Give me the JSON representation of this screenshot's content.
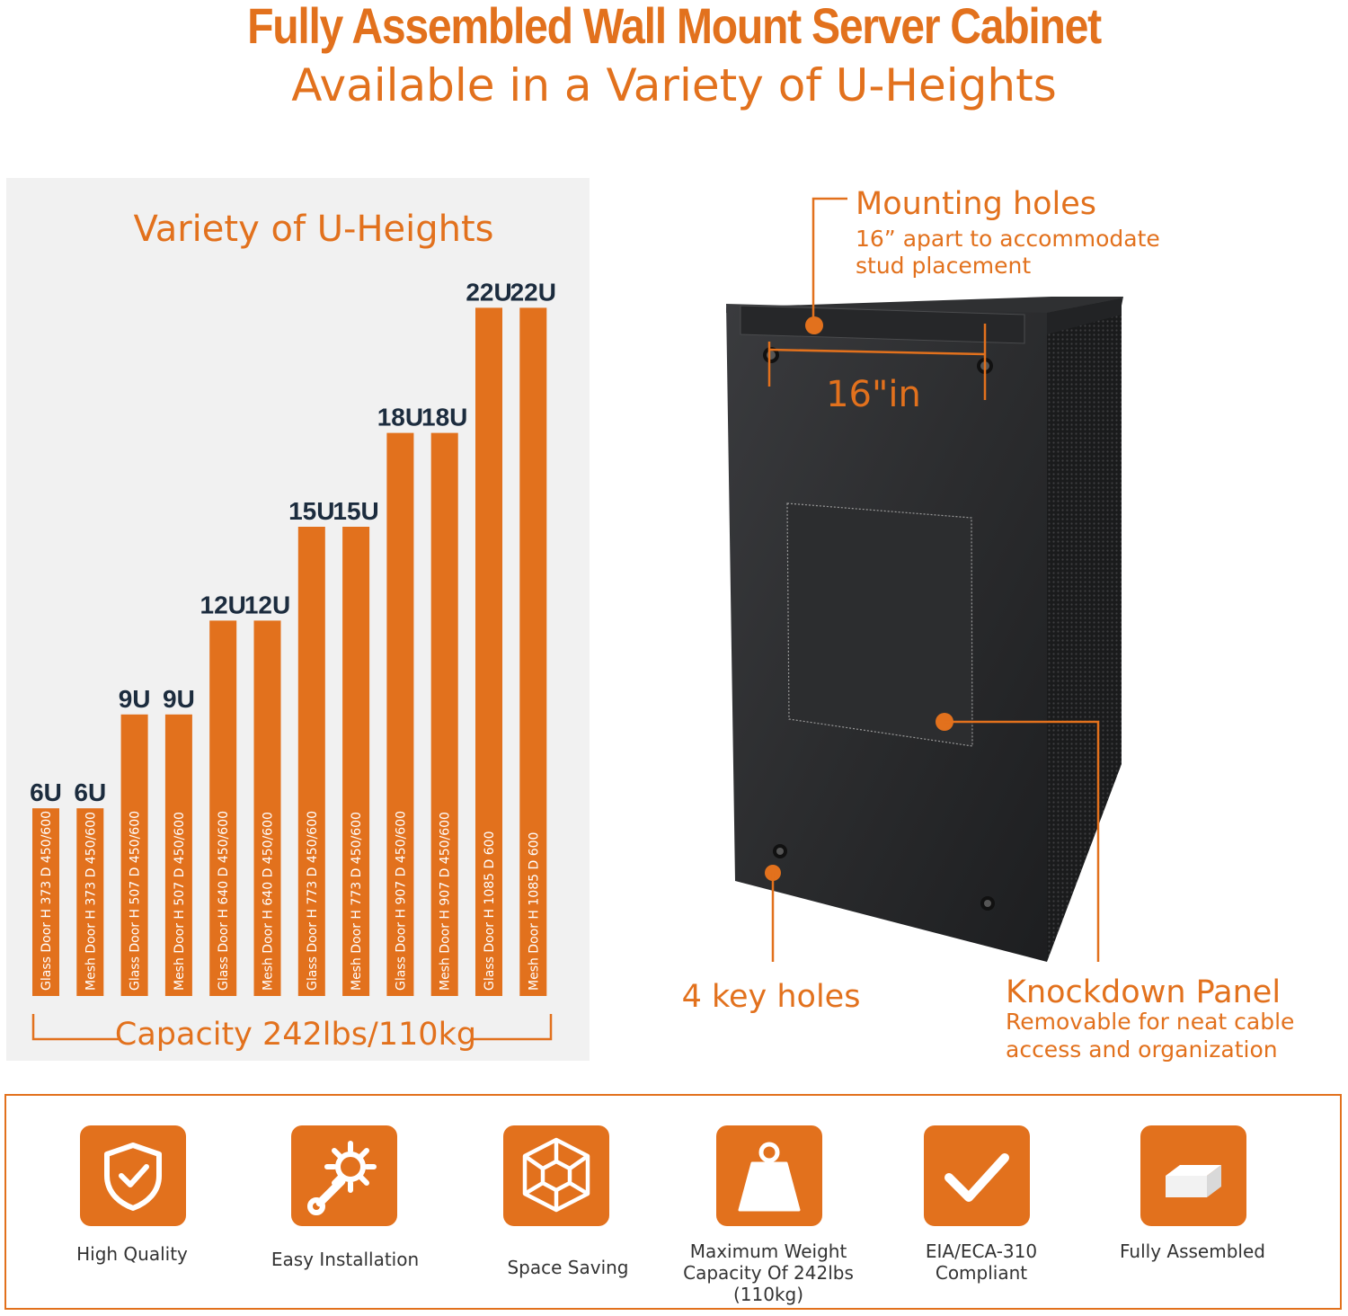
{
  "header": {
    "title": "Fully Assembled Wall Mount Server Cabinet",
    "subtitle": "Available in a Variety of U-Heights"
  },
  "chart_data": {
    "type": "bar",
    "title": "Variety of U-Heights",
    "categories": [
      "Glass Door  H 373  D 450/600",
      "Mesh Door  H 373  D 450/600",
      "Glass Door  H 507  D 450/600",
      "Mesh Door  H 507  D 450/600",
      "Glass Door  H 640  D 450/600",
      "Mesh Door  H 640  D 450/600",
      "Glass Door  H 773  D 450/600",
      "Mesh Door  H 773  D 450/600",
      "Glass Door  H 907  D 450/600",
      "Mesh Door  H 907  D 450/600",
      "Glass Door  H 1085  D 600",
      "Mesh Door  H 1085  D 600"
    ],
    "values": [
      6,
      6,
      9,
      9,
      12,
      12,
      15,
      15,
      18,
      18,
      22,
      22
    ],
    "value_labels": [
      "6U",
      "6U",
      "9U",
      "9U",
      "12U",
      "12U",
      "15U",
      "15U",
      "18U",
      "18U",
      "22U",
      "22U"
    ],
    "xlabel": "Capacity 242lbs/110kg",
    "ylabel": "",
    "ylim": [
      0,
      22
    ],
    "grid": false,
    "legend": "none",
    "bar_color": "#e2711d",
    "label_color": "#1c2c3e"
  },
  "cabinet": {
    "mounting_holes_title": "Mounting holes",
    "mounting_holes_sub1": "16” apart to accommodate",
    "mounting_holes_sub2": "stud placement",
    "spacing_label": "16\"in",
    "key_holes": "4 key holes",
    "knockdown_title": "Knockdown Panel",
    "knockdown_sub1": "Removable for neat cable",
    "knockdown_sub2": "access and organization",
    "body_color": "#2a2b2d",
    "accent": "#e2711d"
  },
  "features": [
    {
      "icon": "shield-check-icon",
      "line1": "High Quality",
      "line2": ""
    },
    {
      "icon": "wrench-gear-icon",
      "line1": "Easy Installation",
      "line2": ""
    },
    {
      "icon": "cube-icon",
      "line1": "Space Saving",
      "line2": ""
    },
    {
      "icon": "weight-icon",
      "line1": "Maximum Weight",
      "line2": "Capacity Of 242lbs (110kg)"
    },
    {
      "icon": "checkmark-icon",
      "line1": "EIA/ECA-310",
      "line2": "Compliant"
    },
    {
      "icon": "box-icon",
      "line1": "Fully Assembled",
      "line2": ""
    }
  ]
}
